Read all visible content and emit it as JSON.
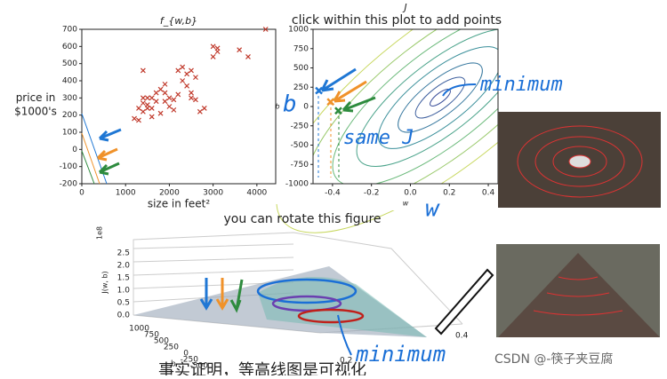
{
  "chart_data": [
    {
      "type": "scatter",
      "title": "f_{w,b}",
      "xlabel": "size in feet²",
      "ylabel": "price in $1000's",
      "xlim": [
        0,
        4430
      ],
      "ylim": [
        -200,
        700
      ],
      "xticks": [
        0,
        1000,
        2000,
        3000,
        4000
      ],
      "yticks": [
        -200,
        -100,
        0,
        100,
        200,
        300,
        400,
        500,
        600,
        700
      ],
      "color": "#c0392b",
      "x": [
        1400,
        1200,
        1300,
        1400,
        1500,
        1400,
        1500,
        1600,
        1700,
        1500,
        1600,
        1800,
        1800,
        1700,
        1900,
        2000,
        1900,
        2000,
        2100,
        2100,
        2200,
        2300,
        2200,
        2300,
        2400,
        2400,
        2500,
        2500,
        2600,
        2500,
        2600,
        3000,
        3000,
        3100,
        3100,
        3600,
        3800,
        4200,
        2700,
        2800,
        1300,
        1400,
        1600,
        1900
      ],
      "values": [
        460,
        180,
        170,
        270,
        260,
        300,
        300,
        240,
        280,
        240,
        190,
        210,
        350,
        330,
        380,
        300,
        330,
        250,
        290,
        230,
        320,
        400,
        460,
        480,
        440,
        370,
        330,
        460,
        420,
        300,
        290,
        600,
        540,
        590,
        570,
        580,
        540,
        700,
        220,
        240,
        240,
        220,
        300,
        280
      ]
    },
    {
      "type": "contour",
      "title": "J",
      "subtitle": "click within this plot to add points",
      "xlabel": "w",
      "ylabel": "b",
      "xlim": [
        -0.5,
        0.45
      ],
      "ylim": [
        -1000,
        1000
      ],
      "xticks": [
        -0.4,
        -0.2,
        {
          "value": 0,
          "label": "0.0"
        },
        0.2,
        0.4
      ],
      "yticks": [
        -1000,
        -750,
        -500,
        -250,
        0,
        250,
        500,
        750,
        1000
      ],
      "series": [
        {
          "name": "blue",
          "color": "#1f77d4",
          "x": [
            -0.47
          ],
          "values": [
            205
          ]
        },
        {
          "name": "orange",
          "color": "#f0922a",
          "x": [
            -0.41
          ],
          "values": [
            60
          ]
        },
        {
          "name": "green",
          "color": "#2e8b3e",
          "x": [
            -0.37
          ],
          "values": [
            -55
          ]
        }
      ]
    }
  ],
  "notes": {
    "minimum": "minimum",
    "same_j": "same J",
    "b": "b",
    "w": "w",
    "minimum2": "minimum"
  },
  "surface": {
    "caption": "you can rotate this figure",
    "scale": "1e8",
    "zlabel": "J(w, b)",
    "zticks": [
      "0.0",
      "0.5",
      "1.0",
      "1.5",
      "2.0",
      "2.5"
    ],
    "bticks": [
      "1000",
      "750",
      "500",
      "250",
      "0",
      "-250",
      "-500"
    ],
    "blabel": "b",
    "wticks": [
      "0.4",
      "0.2"
    ]
  },
  "subtitle_text": "事实证明，等高线图是可视化",
  "watermark": "CSDN @-筷子夹豆腐"
}
